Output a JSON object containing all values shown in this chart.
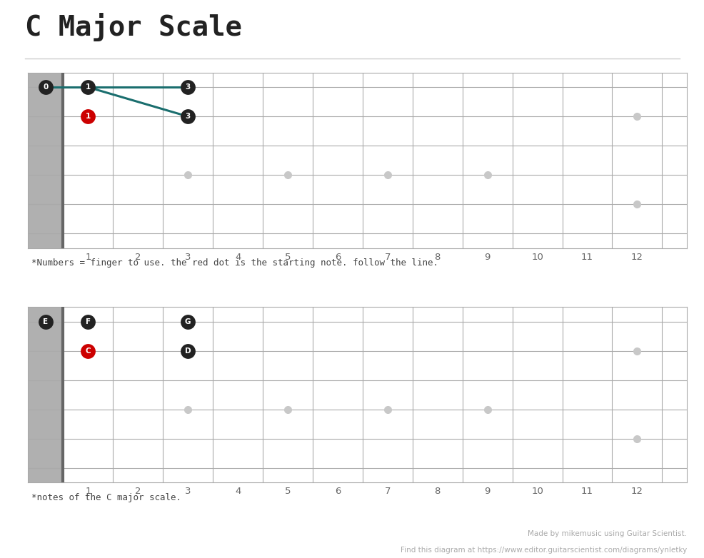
{
  "title": "C Major Scale",
  "title_font": "monospace",
  "title_fontsize": 28,
  "title_color": "#222222",
  "bg_color": "#ffffff",
  "separator_color": "#cccccc",
  "diagram1": {
    "caption": "*Numbers = finger to use. the red dot is the starting note. follow the line.",
    "caption_font": "monospace",
    "caption_fontsize": 9,
    "caption_color": "#444444",
    "board_bg": "#ffffff",
    "n_strings": 6,
    "n_frets": 12,
    "dot_positions": [
      {
        "fret": 3,
        "string": 4,
        "color": "#c8c8c8"
      },
      {
        "fret": 5,
        "string": 4,
        "color": "#c8c8c8"
      },
      {
        "fret": 7,
        "string": 4,
        "color": "#c8c8c8"
      },
      {
        "fret": 9,
        "string": 4,
        "color": "#c8c8c8"
      },
      {
        "fret": 12,
        "string": 2,
        "color": "#c8c8c8"
      },
      {
        "fret": 12,
        "string": 5,
        "color": "#c8c8c8"
      }
    ],
    "labeled_dots": [
      {
        "fret": 0,
        "string": 1,
        "label": "0",
        "color": "#222222",
        "text_color": "#ffffff"
      },
      {
        "fret": 1,
        "string": 1,
        "label": "1",
        "color": "#222222",
        "text_color": "#ffffff"
      },
      {
        "fret": 3,
        "string": 1,
        "label": "3",
        "color": "#222222",
        "text_color": "#ffffff"
      },
      {
        "fret": 1,
        "string": 2,
        "label": "1",
        "color": "#cc0000",
        "text_color": "#ffffff"
      },
      {
        "fret": 3,
        "string": 2,
        "label": "3",
        "color": "#222222",
        "text_color": "#ffffff"
      }
    ],
    "lines": [
      {
        "from_fret": 0,
        "from_string": 1,
        "to_fret": 3,
        "to_string": 1
      },
      {
        "from_fret": 1,
        "from_string": 1,
        "to_fret": 3,
        "to_string": 2
      }
    ],
    "line_color": "#1a6e6e",
    "line_width": 2.2
  },
  "diagram2": {
    "caption": "*notes of the C major scale.",
    "caption_font": "monospace",
    "caption_fontsize": 9,
    "caption_color": "#444444",
    "board_bg": "#ffffff",
    "n_strings": 6,
    "n_frets": 12,
    "dot_positions": [
      {
        "fret": 3,
        "string": 4,
        "color": "#c8c8c8"
      },
      {
        "fret": 5,
        "string": 4,
        "color": "#c8c8c8"
      },
      {
        "fret": 7,
        "string": 4,
        "color": "#c8c8c8"
      },
      {
        "fret": 9,
        "string": 4,
        "color": "#c8c8c8"
      },
      {
        "fret": 12,
        "string": 2,
        "color": "#c8c8c8"
      },
      {
        "fret": 12,
        "string": 5,
        "color": "#c8c8c8"
      }
    ],
    "labeled_dots": [
      {
        "fret": 0,
        "string": 1,
        "label": "E",
        "color": "#222222",
        "text_color": "#ffffff"
      },
      {
        "fret": 1,
        "string": 1,
        "label": "F",
        "color": "#222222",
        "text_color": "#ffffff"
      },
      {
        "fret": 3,
        "string": 1,
        "label": "G",
        "color": "#222222",
        "text_color": "#ffffff"
      },
      {
        "fret": 1,
        "string": 2,
        "label": "C",
        "color": "#cc0000",
        "text_color": "#ffffff"
      },
      {
        "fret": 3,
        "string": 2,
        "label": "D",
        "color": "#222222",
        "text_color": "#ffffff"
      }
    ],
    "lines": [],
    "line_color": "#1a6e6e",
    "line_width": 2.2
  },
  "footer_line1": "Made by mikemusic using Guitar Scientist.",
  "footer_line2": "Find this diagram at https://www.editor.guitarscientist.com/diagrams/ynletky",
  "footer_color": "#aaaaaa",
  "footer_fontsize": 7.5
}
